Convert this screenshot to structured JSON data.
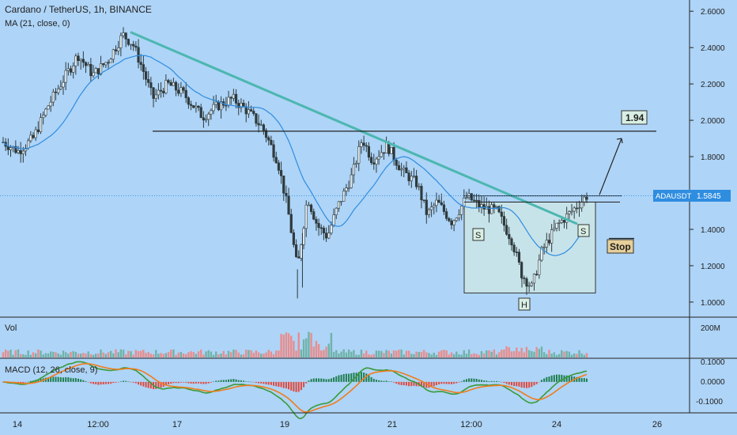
{
  "header": {
    "symbol_title": "Cardano / TetherUS, 1h, BINANCE",
    "ma_label": "MA (21, close, 0)"
  },
  "volume_panel": {
    "label": "Vol",
    "axis_ticks": [
      "200M"
    ]
  },
  "macd_panel": {
    "label": "MACD (12, 26, close, 9)",
    "axis_ticks": [
      "0.1000",
      "0.0000",
      "-0.1000"
    ]
  },
  "price_tag": {
    "symbol": "ADAUSDT",
    "value": "1.5845"
  },
  "annotations": {
    "target": "1.94",
    "stop": "Stop",
    "left_shoulder": "S",
    "head": "H",
    "right_shoulder": "S"
  },
  "colors": {
    "background": "#aed4f7",
    "candle_up": "#2f3a3d",
    "candle_down": "#2f3a3d",
    "ma_line": "#2f8de0",
    "trendline": "#4cb7b0",
    "pattern_box_fill": "#cde6e6",
    "volume_up": "#6fb3a8",
    "volume_down": "#e98d8d",
    "macd_line": "#3a9a3a",
    "signal_line": "#f07c1e",
    "price_tag": "#2f8de0"
  },
  "chart_data": {
    "type": "candlestick",
    "title": "Cardano / TetherUS, 1h, BINANCE",
    "y_axis": {
      "ticks": [
        1.0,
        1.2,
        1.4,
        1.6,
        1.8,
        2.0,
        2.2,
        2.4,
        2.6
      ],
      "tick_labels": [
        "1.0000",
        "1.2000",
        "1.4000",
        "1.6000",
        "1.8000",
        "2.0000",
        "2.2000",
        "2.4000",
        "2.6000"
      ],
      "ylim": [
        0.93,
        2.64
      ]
    },
    "x_axis": {
      "tick_labels": [
        "14",
        "12:00",
        "17",
        "19",
        "21",
        "12:00",
        "24",
        "26"
      ]
    },
    "price_path": [
      {
        "t": 0,
        "p": 1.88
      },
      {
        "t": 3,
        "p": 1.83
      },
      {
        "t": 6,
        "p": 1.9
      },
      {
        "t": 9,
        "p": 2.08
      },
      {
        "t": 12,
        "p": 2.22
      },
      {
        "t": 15,
        "p": 2.36
      },
      {
        "t": 18,
        "p": 2.25
      },
      {
        "t": 21,
        "p": 2.33
      },
      {
        "t": 24,
        "p": 2.47
      },
      {
        "t": 26,
        "p": 2.42
      },
      {
        "t": 28,
        "p": 2.28
      },
      {
        "t": 30,
        "p": 2.12
      },
      {
        "t": 33,
        "p": 2.2
      },
      {
        "t": 36,
        "p": 2.15
      },
      {
        "t": 40,
        "p": 2.02
      },
      {
        "t": 43,
        "p": 2.08
      },
      {
        "t": 46,
        "p": 2.12
      },
      {
        "t": 49,
        "p": 2.05
      },
      {
        "t": 52,
        "p": 1.96
      },
      {
        "t": 55,
        "p": 1.78
      },
      {
        "t": 57,
        "p": 1.52
      },
      {
        "t": 59,
        "p": 1.18
      },
      {
        "t": 61,
        "p": 1.58
      },
      {
        "t": 63,
        "p": 1.42
      },
      {
        "t": 65,
        "p": 1.36
      },
      {
        "t": 67,
        "p": 1.52
      },
      {
        "t": 70,
        "p": 1.7
      },
      {
        "t": 72,
        "p": 1.9
      },
      {
        "t": 74,
        "p": 1.78
      },
      {
        "t": 77,
        "p": 1.86
      },
      {
        "t": 80,
        "p": 1.72
      },
      {
        "t": 83,
        "p": 1.65
      },
      {
        "t": 85,
        "p": 1.48
      },
      {
        "t": 87,
        "p": 1.55
      },
      {
        "t": 90,
        "p": 1.44
      },
      {
        "t": 93,
        "p": 1.58
      },
      {
        "t": 96,
        "p": 1.52
      },
      {
        "t": 99,
        "p": 1.5
      },
      {
        "t": 102,
        "p": 1.34
      },
      {
        "t": 104,
        "p": 1.15
      },
      {
        "t": 106,
        "p": 1.08
      },
      {
        "t": 108,
        "p": 1.28
      },
      {
        "t": 111,
        "p": 1.42
      },
      {
        "t": 114,
        "p": 1.5
      },
      {
        "t": 117,
        "p": 1.5845
      }
    ],
    "horizontal_levels": [
      1.94,
      1.5845,
      1.55
    ],
    "volume_range": [
      0,
      240000000
    ],
    "macd_range": [
      -0.16,
      0.12
    ]
  }
}
